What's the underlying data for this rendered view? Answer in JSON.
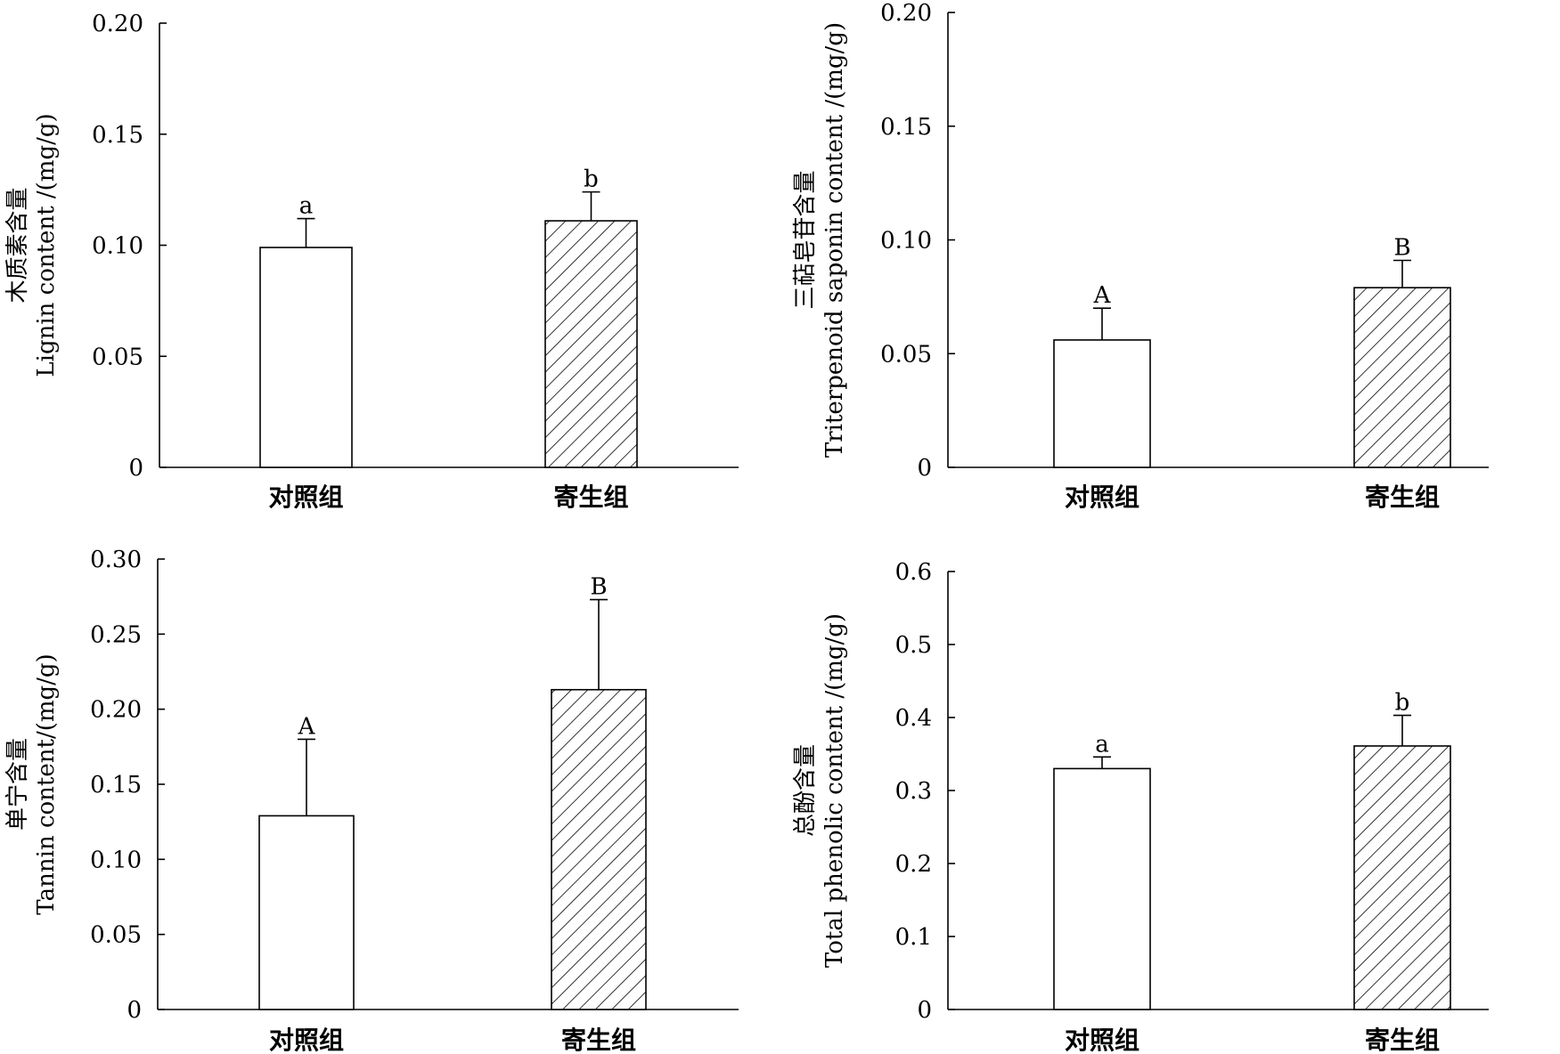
{
  "chart_data": [
    {
      "type": "bar",
      "categories": [
        "对照组",
        "寄生组"
      ],
      "values": [
        0.099,
        0.111
      ],
      "errors": [
        0.013,
        0.013
      ],
      "significance": [
        "a",
        "b"
      ],
      "ylabel_cn": "木质素含量",
      "ylabel_en": "Lignin content /(mg/g)",
      "ylim": [
        0,
        0.2
      ],
      "yticks": [
        "0",
        "0.05",
        "0.10",
        "0.15",
        "0.20"
      ],
      "fills": [
        "white",
        "hatch"
      ]
    },
    {
      "type": "bar",
      "categories": [
        "对照组",
        "寄生组"
      ],
      "values": [
        0.056,
        0.079
      ],
      "errors": [
        0.014,
        0.012
      ],
      "significance": [
        "A",
        "B"
      ],
      "ylabel_cn": "三萜皂苷含量",
      "ylabel_en": "Triterpenoid saponin content /(mg/g)",
      "ylim": [
        0,
        0.2
      ],
      "yticks": [
        "0",
        "0.05",
        "0.10",
        "0.15",
        "0.20"
      ],
      "fills": [
        "white",
        "hatch"
      ]
    },
    {
      "type": "bar",
      "categories": [
        "对照组",
        "寄生组"
      ],
      "values": [
        0.129,
        0.213
      ],
      "errors": [
        0.051,
        0.06
      ],
      "significance": [
        "A",
        "B"
      ],
      "ylabel_cn": "单宁含量",
      "ylabel_en": "Tannin content/(mg/g)",
      "ylim": [
        0,
        0.3
      ],
      "yticks": [
        "0",
        "0.05",
        "0.10",
        "0.15",
        "0.20",
        "0.25",
        "0.30"
      ],
      "fills": [
        "white",
        "hatch"
      ]
    },
    {
      "type": "bar",
      "categories": [
        "对照组",
        "寄生组"
      ],
      "values": [
        0.33,
        0.361
      ],
      "errors": [
        0.016,
        0.042
      ],
      "significance": [
        "a",
        "b"
      ],
      "ylabel_cn": "总酚含量",
      "ylabel_en": "Total phenolic content /(mg/g)",
      "ylim": [
        0,
        0.6
      ],
      "yticks": [
        "0",
        "0.1",
        "0.2",
        "0.3",
        "0.4",
        "0.5",
        "0.6"
      ],
      "fills": [
        "white",
        "hatch"
      ]
    }
  ]
}
